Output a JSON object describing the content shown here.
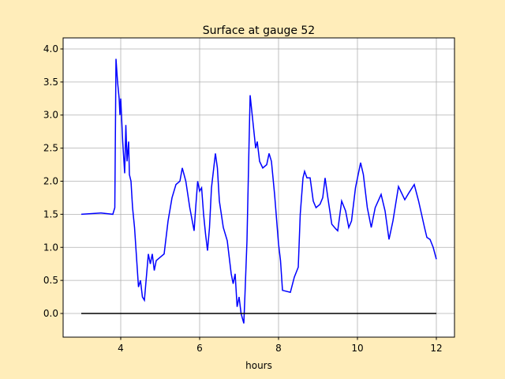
{
  "chart_data": {
    "type": "line",
    "title": "Surface at gauge 52",
    "xlabel": "hours",
    "xlim": [
      2.54,
      12.46
    ],
    "ylim": [
      -0.358,
      4.167
    ],
    "xticks": [
      4,
      6,
      8,
      10,
      12
    ],
    "yticks": [
      {
        "value": 0,
        "label": "0.0"
      },
      {
        "value": 0.5,
        "label": "0.5"
      },
      {
        "value": 1,
        "label": "1.0"
      },
      {
        "value": 1.5,
        "label": "1.5"
      },
      {
        "value": 2,
        "label": "2.0"
      },
      {
        "value": 2.5,
        "label": "2.5"
      },
      {
        "value": 3,
        "label": "3.0"
      },
      {
        "value": 3.5,
        "label": "3.5"
      },
      {
        "value": 4,
        "label": "4.0"
      }
    ],
    "grid": true,
    "series": [
      {
        "color": "#0000ff",
        "x": [
          3.0,
          3.5,
          3.8,
          3.85,
          3.88,
          3.92,
          3.96,
          3.98,
          4.0,
          4.05,
          4.1,
          4.13,
          4.16,
          4.2,
          4.22,
          4.26,
          4.3,
          4.35,
          4.4,
          4.45,
          4.5,
          4.55,
          4.6,
          4.65,
          4.7,
          4.75,
          4.8,
          4.85,
          4.9,
          5.0,
          5.1,
          5.2,
          5.3,
          5.4,
          5.5,
          5.56,
          5.65,
          5.75,
          5.86,
          5.9,
          5.95,
          6.0,
          6.05,
          6.1,
          6.15,
          6.2,
          6.25,
          6.3,
          6.4,
          6.45,
          6.5,
          6.6,
          6.7,
          6.8,
          6.85,
          6.9,
          6.95,
          7.0,
          7.05,
          7.12,
          7.15,
          7.2,
          7.25,
          7.28,
          7.35,
          7.42,
          7.46,
          7.52,
          7.6,
          7.7,
          7.76,
          7.82,
          7.9,
          8.0,
          8.05,
          8.1,
          8.3,
          8.4,
          8.5,
          8.55,
          8.62,
          8.66,
          8.72,
          8.8,
          8.88,
          8.95,
          9.05,
          9.12,
          9.18,
          9.25,
          9.35,
          9.45,
          9.5,
          9.6,
          9.7,
          9.78,
          9.85,
          9.95,
          10.08,
          10.15,
          10.25,
          10.35,
          10.45,
          10.6,
          10.7,
          10.8,
          10.9,
          11.04,
          11.2,
          11.3,
          11.44,
          11.55,
          11.7,
          11.76,
          11.84,
          11.92,
          12.0
        ],
        "values": [
          1.5,
          1.52,
          1.5,
          1.6,
          3.85,
          3.5,
          3.25,
          3.0,
          3.25,
          2.6,
          2.12,
          2.85,
          2.3,
          2.6,
          2.1,
          2.0,
          1.6,
          1.3,
          0.85,
          0.4,
          0.5,
          0.25,
          0.2,
          0.55,
          0.9,
          0.75,
          0.9,
          0.65,
          0.8,
          0.85,
          0.9,
          1.4,
          1.75,
          1.95,
          2.0,
          2.2,
          2.0,
          1.6,
          1.25,
          1.6,
          2.0,
          1.85,
          1.9,
          1.5,
          1.2,
          0.95,
          1.3,
          1.9,
          2.42,
          2.2,
          1.7,
          1.3,
          1.1,
          0.6,
          0.45,
          0.6,
          0.1,
          0.25,
          0.0,
          -0.15,
          0.3,
          1.1,
          2.5,
          3.3,
          2.9,
          2.5,
          2.6,
          2.3,
          2.2,
          2.25,
          2.42,
          2.3,
          1.8,
          1.05,
          0.8,
          0.35,
          0.32,
          0.55,
          0.7,
          1.5,
          2.05,
          2.15,
          2.05,
          2.05,
          1.7,
          1.6,
          1.65,
          1.75,
          2.05,
          1.75,
          1.35,
          1.28,
          1.25,
          1.7,
          1.55,
          1.3,
          1.4,
          1.9,
          2.28,
          2.1,
          1.6,
          1.3,
          1.6,
          1.8,
          1.55,
          1.12,
          1.4,
          1.92,
          1.72,
          1.82,
          1.95,
          1.7,
          1.3,
          1.15,
          1.12,
          1.0,
          0.82
        ]
      },
      {
        "color": "#000000",
        "x": [
          3,
          12
        ],
        "values": [
          0,
          0
        ]
      }
    ]
  }
}
